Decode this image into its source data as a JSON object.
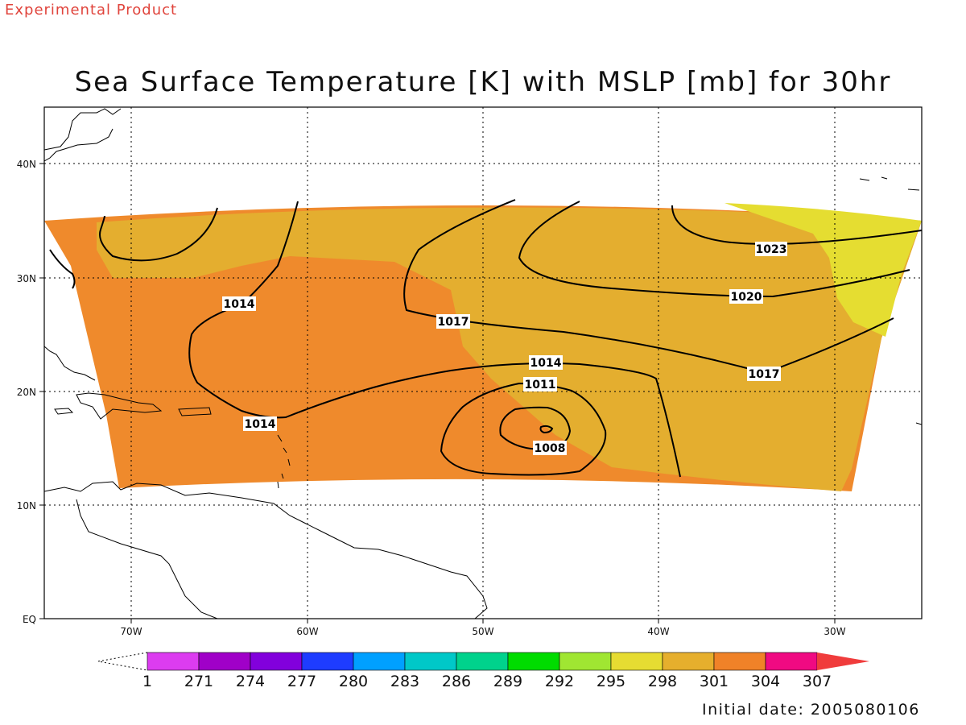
{
  "header": {
    "tag": "Experimental Product"
  },
  "title": "Sea Surface Temperature [K] with MSLP [mb] for 30hr",
  "map": {
    "lon_ticks": [
      "70W",
      "60W",
      "50W",
      "40W",
      "30W"
    ],
    "lat_ticks": [
      "EQ",
      "10N",
      "20N",
      "30N",
      "40N"
    ],
    "grid": "dotted",
    "field_colors": {
      "warm_orange": "#ef8a2c",
      "gold": "#e4ae2f",
      "yellow": "#e5dd31"
    },
    "contour_labels": [
      "1023",
      "1020",
      "1017",
      "1014",
      "1011",
      "1008",
      "1017",
      "1014",
      "1014"
    ]
  },
  "colorbar": {
    "labels": [
      "1",
      "271",
      "274",
      "277",
      "280",
      "283",
      "286",
      "289",
      "292",
      "295",
      "298",
      "301",
      "304",
      "307"
    ],
    "colors": [
      "#dc3cf0",
      "#a000c8",
      "#8200dc",
      "#1e3cff",
      "#00a0ff",
      "#00c8c8",
      "#00d28c",
      "#00dc00",
      "#a0e632",
      "#e6dc32",
      "#e6af2d",
      "#f08228",
      "#f00a82",
      "#f03c3c"
    ]
  },
  "footer": {
    "initial_date": "Initial date: 2005080106"
  }
}
